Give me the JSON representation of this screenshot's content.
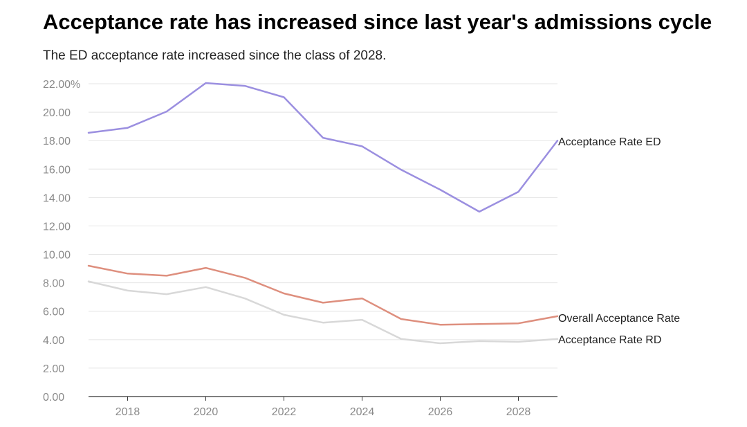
{
  "title": "Acceptance rate has increased since last year's admissions cycle",
  "subtitle": "The ED acceptance rate increased since the class of 2028.",
  "chart_data": {
    "type": "line",
    "title": "Acceptance rate has increased since last year's admissions cycle",
    "subtitle": "The ED acceptance rate increased since the class of 2028.",
    "xlabel": "",
    "ylabel": "",
    "x": [
      2017,
      2018,
      2019,
      2020,
      2021,
      2022,
      2023,
      2024,
      2025,
      2026,
      2027,
      2028,
      2029
    ],
    "xlim": [
      2017,
      2029
    ],
    "ylim": [
      0,
      22
    ],
    "x_ticks": [
      2018,
      2020,
      2022,
      2024,
      2026,
      2028
    ],
    "x_tick_labels": [
      "2018",
      "2020",
      "2022",
      "2024",
      "2026",
      "2028"
    ],
    "y_ticks": [
      0,
      2,
      4,
      6,
      8,
      10,
      12,
      14,
      16,
      18,
      20,
      22
    ],
    "y_tick_labels": [
      "0.00",
      "2.00",
      "4.00",
      "6.00",
      "8.00",
      "10.00",
      "12.00",
      "14.00",
      "16.00",
      "18.00",
      "20.00",
      "22.00%"
    ],
    "grid": "horizontal",
    "legend": "direct labels at line ends (right)",
    "series": [
      {
        "name": "Acceptance Rate ED",
        "color": "#9b8fe0",
        "values": [
          18.55,
          18.9,
          20.05,
          22.05,
          21.85,
          21.05,
          18.2,
          17.6,
          15.95,
          14.55,
          13.0,
          14.4,
          18.0
        ]
      },
      {
        "name": "Overall Acceptance Rate",
        "color": "#de8f7e",
        "values": [
          9.2,
          8.65,
          8.5,
          9.05,
          8.35,
          7.25,
          6.6,
          6.9,
          5.45,
          5.05,
          5.1,
          5.15,
          5.65
        ]
      },
      {
        "name": "Acceptance Rate RD",
        "color": "#d8d8d8",
        "values": [
          8.1,
          7.45,
          7.2,
          7.7,
          6.9,
          5.75,
          5.2,
          5.4,
          4.05,
          3.75,
          3.9,
          3.85,
          4.05
        ]
      }
    ]
  }
}
